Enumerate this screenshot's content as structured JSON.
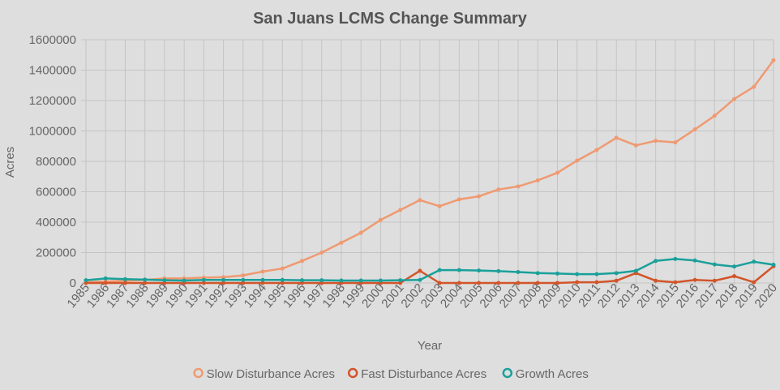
{
  "chart_data": {
    "type": "line",
    "title": "San Juans LCMS Change Summary",
    "xlabel": "Year",
    "ylabel": "Acres",
    "ylim": [
      0,
      1600000
    ],
    "yticks": [
      "0",
      "200000",
      "400000",
      "600000",
      "800000",
      "1000000",
      "1200000",
      "1400000",
      "1600000"
    ],
    "grid": true,
    "legend_position": "bottom",
    "categories": [
      "1985",
      "1986",
      "1987",
      "1988",
      "1989",
      "1990",
      "1991",
      "1992",
      "1993",
      "1994",
      "1995",
      "1996",
      "1997",
      "1998",
      "1999",
      "2000",
      "2001",
      "2002",
      "2003",
      "2004",
      "2005",
      "2006",
      "2007",
      "2008",
      "2009",
      "2010",
      "2011",
      "2012",
      "2013",
      "2014",
      "2015",
      "2016",
      "2017",
      "2018",
      "2019",
      "2020"
    ],
    "series": [
      {
        "name": "Slow Disturbance Acres",
        "color": "#ef9a72",
        "values": [
          5000,
          10000,
          15000,
          20000,
          30000,
          30000,
          35000,
          38000,
          50000,
          75000,
          95000,
          145000,
          200000,
          265000,
          330000,
          415000,
          480000,
          545000,
          505000,
          550000,
          570000,
          615000,
          635000,
          675000,
          725000,
          805000,
          875000,
          955000,
          905000,
          935000,
          925000,
          1010000,
          1100000,
          1210000,
          1290000,
          1465000
        ]
      },
      {
        "name": "Fast Disturbance Acres",
        "color": "#d2552a",
        "values": [
          0,
          0,
          0,
          0,
          0,
          0,
          0,
          0,
          0,
          0,
          0,
          0,
          0,
          0,
          0,
          0,
          0,
          80000,
          0,
          0,
          0,
          0,
          0,
          0,
          0,
          5000,
          5000,
          15000,
          65000,
          15000,
          5000,
          20000,
          15000,
          45000,
          5000,
          110000
        ]
      },
      {
        "name": "Growth Acres",
        "color": "#1aa09a",
        "values": [
          18000,
          30000,
          25000,
          22000,
          18000,
          16000,
          20000,
          20000,
          20000,
          20000,
          20000,
          18000,
          18000,
          16000,
          16000,
          16000,
          18000,
          20000,
          85000,
          85000,
          82000,
          78000,
          72000,
          65000,
          62000,
          58000,
          58000,
          65000,
          80000,
          145000,
          158000,
          148000,
          122000,
          108000,
          140000,
          120000
        ]
      }
    ]
  }
}
